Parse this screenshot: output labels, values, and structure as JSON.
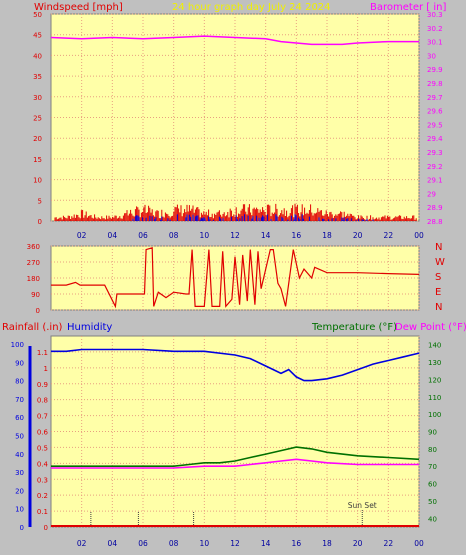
{
  "title": "24 hour graph day  July 24 2024",
  "colors": {
    "background": "#c0c0c0",
    "plot_bg": "#ffffa8",
    "grid": "#e8a080",
    "wind": "#e00000",
    "gust": "#0000e0",
    "barometer": "#ff00ff",
    "direction": "#e00000",
    "rain": "#e00000",
    "humidity": "#0000e0",
    "temperature": "#007000",
    "dewpoint": "#ff00ff"
  },
  "chart_data": [
    {
      "id": "wind",
      "type": "line",
      "left_label": "Windspeed [mph]",
      "right_label": "Barometer [ in]",
      "x_ticks": [
        "02",
        "04",
        "06",
        "08",
        "10",
        "12",
        "14",
        "16",
        "18",
        "20",
        "22",
        "00"
      ],
      "y_left_ticks": [
        "0",
        "5",
        "10",
        "15",
        "20",
        "25",
        "30",
        "35",
        "40",
        "45",
        "50"
      ],
      "y_left_range": [
        0,
        50
      ],
      "y_right_ticks": [
        "28.8",
        "28.9",
        "29",
        "29.1",
        "29.2",
        "29.3",
        "29.4",
        "29.5",
        "29.6",
        "29.7",
        "29.8",
        "29.9",
        "30",
        "30.1",
        "30.2",
        "30.3"
      ],
      "y_right_range": [
        28.8,
        30.3
      ],
      "grid": true,
      "series": [
        {
          "name": "Windspeed",
          "axis": "left",
          "x": [
            0,
            1,
            2,
            3,
            4,
            5,
            6,
            7,
            8,
            9,
            10,
            11,
            12,
            13,
            14,
            15,
            16,
            17,
            18,
            19,
            20,
            21,
            22,
            23,
            24
          ],
          "y": [
            1,
            1,
            2,
            1,
            1,
            2,
            3,
            2,
            3,
            3,
            2,
            2,
            3,
            3,
            3,
            3,
            3,
            3,
            2,
            2,
            1,
            1,
            1,
            1,
            1
          ]
        },
        {
          "name": "Barometer",
          "axis": "right",
          "x": [
            0,
            2,
            4,
            6,
            8,
            10,
            12,
            14,
            15,
            16,
            17,
            18,
            19,
            20,
            22,
            24
          ],
          "y": [
            30.13,
            30.12,
            30.13,
            30.12,
            30.13,
            30.14,
            30.13,
            30.12,
            30.1,
            30.09,
            30.08,
            30.08,
            30.08,
            30.09,
            30.1,
            30.1
          ]
        }
      ]
    },
    {
      "id": "direction",
      "type": "line",
      "y_left_ticks": [
        "0",
        "90",
        "180",
        "270",
        "360"
      ],
      "y_left_range": [
        0,
        360
      ],
      "right_labels": [
        "N",
        "W",
        "S",
        "E",
        "N"
      ],
      "grid": true,
      "series": [
        {
          "name": "Direction",
          "x": [
            0,
            1,
            1.6,
            1.9,
            3.5,
            4.2,
            4.3,
            5,
            6.1,
            6.2,
            6.6,
            6.7,
            7,
            7.5,
            8,
            8.8,
            9,
            9.2,
            9.4,
            10,
            10.3,
            10.5,
            11,
            11.2,
            11.4,
            11.8,
            12,
            12.3,
            12.5,
            12.8,
            13,
            13.3,
            13.5,
            13.7,
            14.3,
            14.5,
            14.8,
            15,
            15.3,
            15.8,
            16.2,
            16.5,
            17,
            17.2,
            18,
            19,
            20,
            22,
            24
          ],
          "y": [
            140,
            140,
            155,
            140,
            140,
            20,
            90,
            90,
            90,
            340,
            350,
            20,
            100,
            70,
            100,
            90,
            90,
            340,
            20,
            20,
            340,
            20,
            20,
            330,
            20,
            60,
            300,
            30,
            310,
            50,
            340,
            30,
            330,
            120,
            340,
            340,
            150,
            120,
            20,
            340,
            180,
            230,
            180,
            240,
            210,
            210,
            210,
            205,
            200
          ]
        }
      ]
    },
    {
      "id": "rain",
      "type": "line",
      "left_label": "Rainfall (.in)",
      "left_label2": "Humidity",
      "right_label": "Temperature (°F)",
      "right_label2": "Dew Point (°F)",
      "y_left_ticks": [
        "0",
        "0.1",
        "0.2",
        "0.3",
        "0.4",
        "0.5",
        "0.6",
        "0.7",
        "0.8",
        "0.9",
        "1",
        "1.1"
      ],
      "y_left_range": [
        0,
        1.2
      ],
      "y_hum_ticks": [
        "0",
        "10",
        "20",
        "30",
        "40",
        "50",
        "60",
        "70",
        "80",
        "90",
        "100"
      ],
      "y_hum_range": [
        0,
        100
      ],
      "y_right_ticks": [
        "40",
        "50",
        "60",
        "70",
        "80",
        "90",
        "100",
        "110",
        "120",
        "130",
        "140"
      ],
      "y_right_range": [
        35,
        145
      ],
      "x_ticks": [
        "02",
        "04",
        "06",
        "08",
        "10",
        "12",
        "14",
        "16",
        "18",
        "20",
        "22",
        "00"
      ],
      "sun_set_label": "Sun Set",
      "sun_set_hour": 20.3,
      "grid": true,
      "series": [
        {
          "name": "Humidity",
          "axis": "hum",
          "x": [
            0,
            1,
            2,
            4,
            6,
            8,
            10,
            12,
            13,
            14,
            14.5,
            15,
            15.5,
            16,
            16.5,
            17,
            18,
            19,
            20,
            21,
            22,
            23,
            24
          ],
          "y": [
            96,
            96,
            97,
            97,
            97,
            96,
            96,
            94,
            92,
            88,
            86,
            84,
            86,
            82,
            80,
            80,
            81,
            83,
            86,
            89,
            91,
            93,
            95
          ]
        },
        {
          "name": "Temperature",
          "axis": "right",
          "x": [
            0,
            2,
            4,
            6,
            8,
            9,
            10,
            11,
            12,
            13,
            14,
            15,
            16,
            17,
            18,
            19,
            20,
            22,
            24
          ],
          "y": [
            70,
            70,
            70,
            70,
            70,
            71,
            72,
            72,
            73,
            75,
            77,
            79,
            81,
            80,
            78,
            77,
            76,
            75,
            74
          ]
        },
        {
          "name": "Dew Point",
          "axis": "right",
          "x": [
            0,
            2,
            4,
            6,
            8,
            10,
            12,
            13,
            14,
            15,
            16,
            17,
            18,
            20,
            22,
            24
          ],
          "y": [
            69,
            69,
            69,
            69,
            69,
            70,
            70,
            71,
            72,
            73,
            74,
            73,
            72,
            71,
            71,
            71
          ]
        }
      ]
    }
  ]
}
